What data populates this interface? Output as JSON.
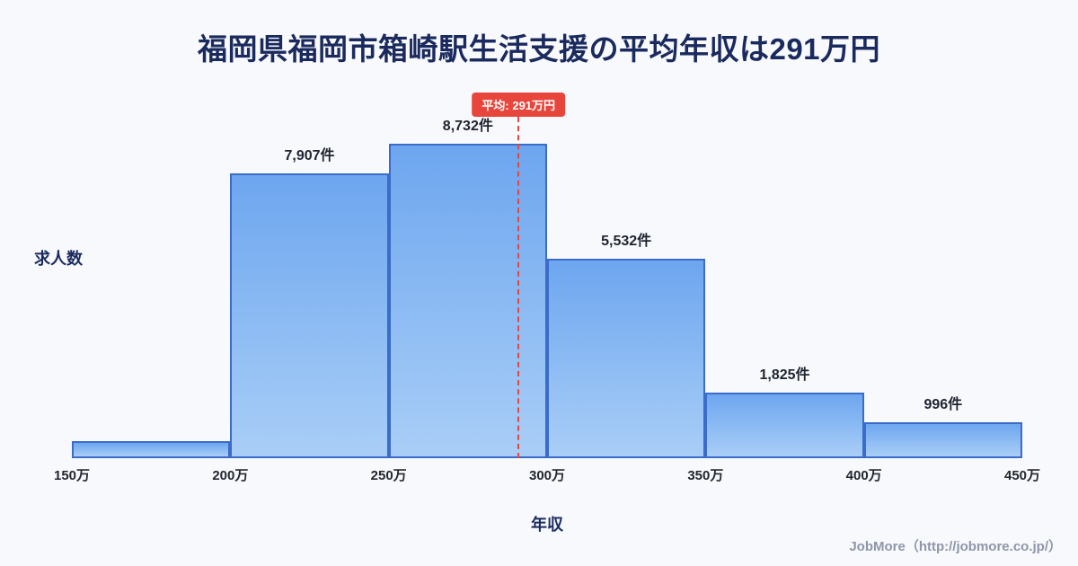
{
  "title": "福岡県福岡市箱崎駅生活支援の平均年収は291万円",
  "chart_data": {
    "type": "bar",
    "title": "福岡県福岡市箱崎駅生活支援の平均年収は291万円",
    "xlabel": "年収",
    "ylabel": "求人数",
    "x_ticks": [
      "150万",
      "200万",
      "250万",
      "300万",
      "350万",
      "400万",
      "450万"
    ],
    "x_range": [
      150,
      450
    ],
    "ylim": [
      0,
      8732
    ],
    "grid": false,
    "legend": false,
    "bins": [
      {
        "range": [
          150,
          200
        ],
        "value": 470,
        "label": ""
      },
      {
        "range": [
          200,
          250
        ],
        "value": 7907,
        "label": "7,907件"
      },
      {
        "range": [
          250,
          300
        ],
        "value": 8732,
        "label": "8,732件"
      },
      {
        "range": [
          300,
          350
        ],
        "value": 5532,
        "label": "5,532件"
      },
      {
        "range": [
          350,
          400
        ],
        "value": 1825,
        "label": "1,825件"
      },
      {
        "range": [
          400,
          450
        ],
        "value": 996,
        "label": "996件"
      }
    ],
    "mean": {
      "value": 291,
      "label": "平均: 291万円"
    }
  },
  "footer": {
    "credit": "JobMore（http://jobmore.co.jp/）"
  },
  "colors": {
    "accent_red": "#e8463c",
    "bar_border": "#3a6cc8",
    "bar_top": "#6da6ef",
    "bar_bottom": "#a9cef7",
    "title": "#1b2a5e",
    "background": "#f7f9fc"
  }
}
